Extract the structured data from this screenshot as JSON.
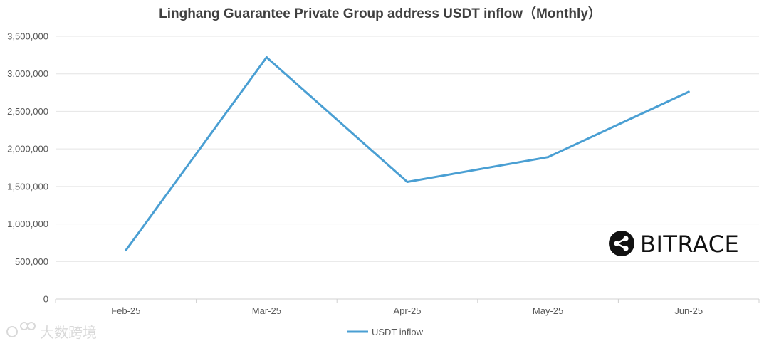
{
  "chart_data": {
    "type": "line",
    "title": "Linghang Guarantee Private Group address USDT inflow（Monthly）",
    "categories": [
      "Feb-25",
      "Mar-25",
      "Apr-25",
      "May-25",
      "Jun-25"
    ],
    "series": [
      {
        "name": "USDT inflow",
        "values": [
          650000,
          3220000,
          1560000,
          1890000,
          2760000
        ],
        "color": "#4a9fd3"
      }
    ],
    "ylim": [
      0,
      3500000
    ],
    "yticks": [
      "0",
      "500,000",
      "1,000,000",
      "1,500,000",
      "2,000,000",
      "2,500,000",
      "3,000,000",
      "3,500,000"
    ],
    "grid": true,
    "legend": "bottom-center"
  },
  "brand": {
    "name": "BITRACE",
    "icon": "bitrace-share-logo-icon"
  },
  "watermark": {
    "text": "大数跨境",
    "icon": "watermark-logo-icon"
  }
}
